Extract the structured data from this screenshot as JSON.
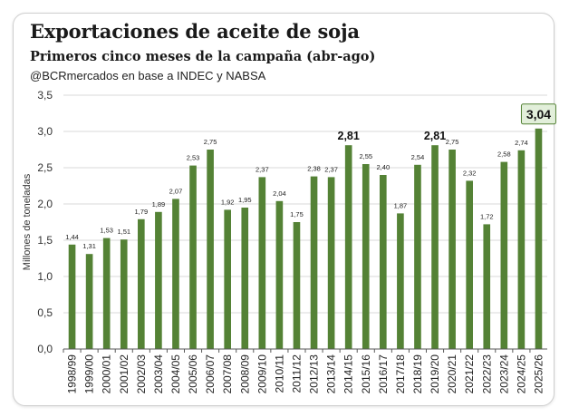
{
  "header": {
    "title": "Exportaciones de aceite de soja",
    "subtitle": "Primeros cinco meses de la campaña (abr-ago)",
    "source": "@BCRmercados  en base a INDEC y NABSA"
  },
  "colors": {
    "bar": "#548235",
    "highlight_fill": "#e2efda",
    "highlight_border": "#548235",
    "grid": "#d9d9d9",
    "axis": "#595959"
  },
  "chart_data": {
    "type": "bar",
    "title": "Exportaciones de aceite de soja",
    "subtitle": "Primeros cinco meses de la campaña (abr-ago)",
    "ylabel": "Millones de toneladas",
    "xlabel": "",
    "ylim": [
      0,
      3.5
    ],
    "yticks": [
      "0,0",
      "0,5",
      "1,0",
      "1,5",
      "2,0",
      "2,5",
      "3,0",
      "3,5"
    ],
    "grid": true,
    "legend": "none",
    "categories": [
      "1998/99",
      "1999/00",
      "2000/01",
      "2001/02",
      "2002/03",
      "2003/04",
      "2004/05",
      "2005/06",
      "2006/07",
      "2007/08",
      "2008/09",
      "2009/10",
      "2010/11",
      "2011/12",
      "2012/13",
      "2013/14",
      "2014/15",
      "2015/16",
      "2016/17",
      "2017/18",
      "2018/19",
      "2019/20",
      "2020/21",
      "2021/22",
      "2022/23",
      "2023/24",
      "2024/25",
      "2025/26"
    ],
    "values": [
      1.44,
      1.31,
      1.53,
      1.51,
      1.79,
      1.89,
      2.07,
      2.53,
      2.75,
      1.92,
      1.95,
      2.37,
      2.04,
      1.75,
      2.38,
      2.37,
      2.81,
      2.55,
      2.4,
      1.87,
      2.54,
      2.81,
      2.75,
      2.32,
      1.72,
      2.58,
      2.74,
      3.04
    ],
    "labels": [
      "1,44",
      "1,31",
      "1,53",
      "1,51",
      "1,79",
      "1,89",
      "2,07",
      "2,53",
      "2,75",
      "1,92",
      "1,95",
      "2,37",
      "2,04",
      "1,75",
      "2,38",
      "2,37",
      "2,81",
      "2,55",
      "2,40",
      "1,87",
      "2,54",
      "2,81",
      "2,75",
      "2,32",
      "1,72",
      "2,58",
      "2,74",
      "3,04"
    ],
    "emphasized": [
      "2014/15",
      "2019/20"
    ],
    "highlighted": "2025/26"
  }
}
